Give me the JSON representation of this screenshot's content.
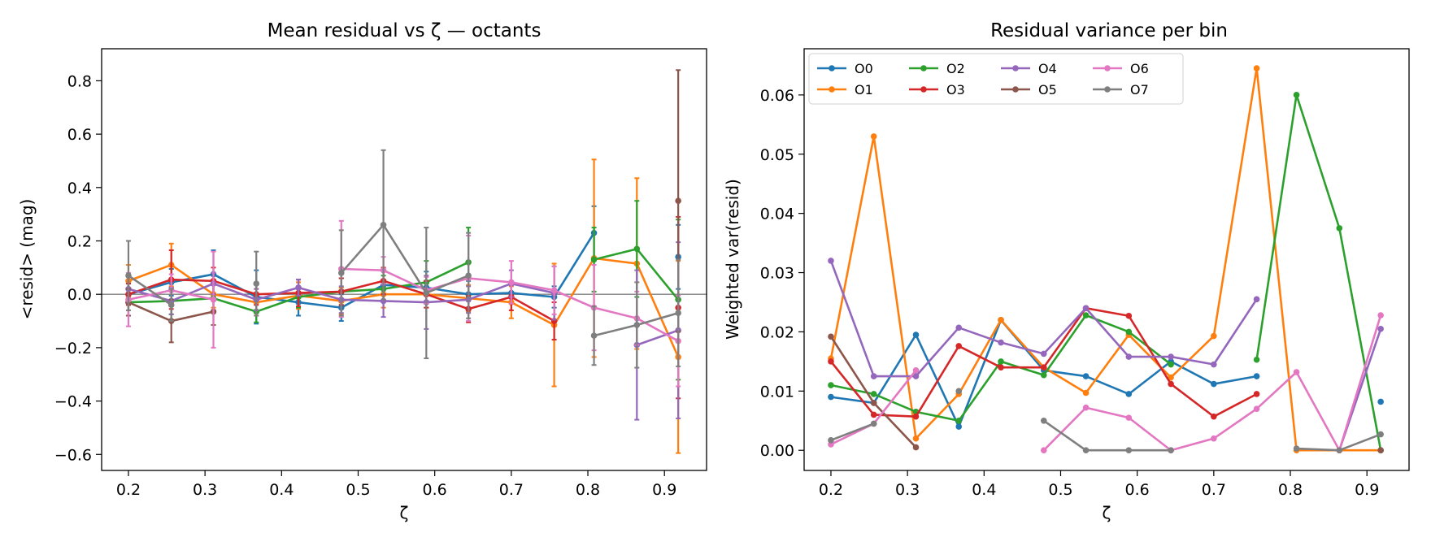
{
  "palette": [
    "#1f77b4",
    "#ff7f0e",
    "#2ca02c",
    "#d62728",
    "#9467bd",
    "#8c564b",
    "#e377c2",
    "#7f7f7f"
  ],
  "chart_data": [
    {
      "type": "line",
      "subtype": "errorbar",
      "title": "Mean residual vs ζ — octants",
      "xlabel": "ζ",
      "ylabel": "<resid> (mag)",
      "xlim": [
        0.165,
        0.955
      ],
      "ylim": [
        -0.66,
        0.92
      ],
      "xticks": [
        0.2,
        0.3,
        0.4,
        0.5,
        0.6,
        0.7,
        0.8,
        0.9
      ],
      "xtick_labels": [
        "0.2",
        "0.3",
        "0.4",
        "0.5",
        "0.6",
        "0.7",
        "0.8",
        "0.9"
      ],
      "yticks": [
        -0.6,
        -0.4,
        -0.2,
        0.0,
        0.2,
        0.4,
        0.6,
        0.8
      ],
      "ytick_labels": [
        "−0.6",
        "−0.4",
        "−0.2",
        "0.0",
        "0.2",
        "0.4",
        "0.6",
        "0.8"
      ],
      "hline": 0,
      "grid": false,
      "series": [
        {
          "x": [
            0.2,
            0.256,
            0.311,
            0.367,
            0.422,
            0.478,
            0.533,
            0.589,
            0.644,
            0.7,
            0.756,
            0.808,
            0.864,
            0.918
          ],
          "y": [
            0.0,
            0.045,
            0.075,
            -0.01,
            -0.03,
            -0.05,
            0.035,
            0.025,
            0.0,
            0.005,
            -0.01,
            0.23,
            null,
            0.14
          ],
          "err": [
            0.04,
            0.05,
            0.09,
            0.1,
            0.05,
            0.05,
            0.06,
            0.06,
            0.05,
            0.04,
            0.04,
            0.1,
            null,
            0.12
          ]
        },
        {
          "x": [
            0.2,
            0.256,
            0.311,
            0.367,
            0.422,
            0.478,
            0.533,
            0.589,
            0.644,
            0.7,
            0.756,
            0.808,
            0.864,
            0.918
          ],
          "y": [
            0.05,
            0.11,
            0.0,
            -0.03,
            -0.005,
            -0.025,
            0.0,
            0.0,
            -0.015,
            -0.03,
            -0.115,
            0.135,
            0.115,
            -0.235
          ],
          "err": [
            0.06,
            0.08,
            0.05,
            0.05,
            0.05,
            0.05,
            0.05,
            0.05,
            0.05,
            0.06,
            0.23,
            0.37,
            0.32,
            0.36
          ]
        },
        {
          "x": [
            0.2,
            0.256,
            0.311,
            0.367,
            0.422,
            0.478,
            0.533,
            0.589,
            0.644,
            0.7,
            0.756,
            0.808,
            0.864,
            0.918
          ],
          "y": [
            -0.03,
            -0.025,
            -0.015,
            -0.065,
            -0.01,
            0.01,
            0.02,
            0.045,
            0.12,
            null,
            null,
            0.13,
            0.17,
            -0.02
          ],
          "err": [
            0.05,
            0.05,
            0.05,
            0.04,
            0.04,
            0.05,
            0.05,
            0.08,
            0.13,
            null,
            null,
            0.12,
            0.18,
            0.3
          ]
        },
        {
          "x": [
            0.2,
            0.256,
            0.311,
            0.367,
            0.422,
            0.478,
            0.533,
            0.589,
            0.644,
            0.7,
            0.756,
            0.808,
            0.864,
            0.918
          ],
          "y": [
            0.0,
            0.055,
            0.05,
            0.0,
            0.005,
            0.01,
            0.05,
            0.0,
            -0.055,
            -0.01,
            -0.1,
            null,
            null,
            -0.05
          ],
          "err": [
            0.04,
            0.11,
            0.05,
            0.04,
            0.05,
            0.05,
            0.05,
            0.05,
            0.05,
            0.05,
            0.07,
            null,
            null,
            0.34
          ]
        },
        {
          "x": [
            0.2,
            0.256,
            0.311,
            0.367,
            0.422,
            0.478,
            0.533,
            0.589,
            0.644,
            0.7,
            0.756,
            0.808,
            0.864,
            0.918
          ],
          "y": [
            0.02,
            -0.025,
            0.04,
            -0.02,
            0.025,
            -0.02,
            -0.025,
            -0.03,
            -0.02,
            0.04,
            0.005,
            null,
            -0.19,
            -0.135
          ],
          "err": [
            0.05,
            0.05,
            0.04,
            0.04,
            0.03,
            0.05,
            0.06,
            0.1,
            0.05,
            0.05,
            0.1,
            null,
            0.28,
            0.33
          ]
        },
        {
          "x": [
            0.2,
            0.256,
            0.311,
            0.367,
            0.422,
            0.478,
            0.533,
            0.589,
            0.644,
            0.7,
            0.756,
            0.808,
            0.864,
            0.918
          ],
          "y": [
            -0.03,
            -0.1,
            -0.065,
            null,
            null,
            null,
            null,
            null,
            null,
            null,
            null,
            null,
            null,
            0.35
          ],
          "err": [
            0.05,
            0.08,
            0.05,
            null,
            null,
            null,
            null,
            null,
            null,
            null,
            null,
            null,
            null,
            0.49
          ]
        },
        {
          "x": [
            0.2,
            0.256,
            0.311,
            0.367,
            0.422,
            0.478,
            0.533,
            0.589,
            0.644,
            0.7,
            0.756,
            0.808,
            0.864,
            0.918
          ],
          "y": [
            -0.02,
            0.015,
            -0.02,
            null,
            null,
            0.095,
            0.09,
            0.015,
            0.06,
            0.045,
            0.015,
            -0.05,
            -0.09,
            -0.175
          ],
          "err": [
            0.1,
            0.06,
            0.18,
            null,
            null,
            0.18,
            0.05,
            0.05,
            0.16,
            0.08,
            0.09,
            0.16,
            0.1,
            0.17
          ]
        },
        {
          "x": [
            0.2,
            0.256,
            0.311,
            0.367,
            0.422,
            0.478,
            0.533,
            0.589,
            0.644,
            0.7,
            0.756,
            0.808,
            0.864,
            0.918
          ],
          "y": [
            0.07,
            -0.04,
            null,
            0.04,
            null,
            0.08,
            0.26,
            0.005,
            0.07,
            null,
            null,
            -0.155,
            -0.115,
            -0.07
          ],
          "err": [
            0.13,
            0.06,
            null,
            0.12,
            null,
            0.16,
            0.28,
            0.245,
            0.16,
            null,
            null,
            0.11,
            0.16,
            0.2
          ]
        }
      ]
    },
    {
      "type": "line",
      "title": "Residual variance per bin",
      "xlabel": "ζ",
      "ylabel": "Weighted var(resid)",
      "xlim": [
        0.165,
        0.955
      ],
      "ylim": [
        -0.0034,
        0.0678
      ],
      "xticks": [
        0.2,
        0.3,
        0.4,
        0.5,
        0.6,
        0.7,
        0.8,
        0.9
      ],
      "xtick_labels": [
        "0.2",
        "0.3",
        "0.4",
        "0.5",
        "0.6",
        "0.7",
        "0.8",
        "0.9"
      ],
      "yticks": [
        0.0,
        0.01,
        0.02,
        0.03,
        0.04,
        0.05,
        0.06
      ],
      "ytick_labels": [
        "0.00",
        "0.01",
        "0.02",
        "0.03",
        "0.04",
        "0.05",
        "0.06"
      ],
      "grid": false,
      "legend": {
        "position": "upper-left",
        "columns": 4
      },
      "series": [
        {
          "name": "O0",
          "x": [
            0.2,
            0.256,
            0.311,
            0.367,
            0.422,
            0.478,
            0.533,
            0.589,
            0.644,
            0.7,
            0.756,
            0.808,
            0.864,
            0.918
          ],
          "y": [
            0.009,
            0.008,
            0.0195,
            0.004,
            0.022,
            0.0135,
            0.0125,
            0.0095,
            0.015,
            0.0112,
            0.0125,
            null,
            null,
            0.0082
          ]
        },
        {
          "name": "O1",
          "x": [
            0.2,
            0.256,
            0.311,
            0.367,
            0.422,
            0.478,
            0.533,
            0.589,
            0.644,
            0.7,
            0.756,
            0.808,
            0.864,
            0.918
          ],
          "y": [
            0.0155,
            0.053,
            0.002,
            0.0095,
            0.022,
            0.014,
            0.0097,
            0.0195,
            0.0123,
            0.0193,
            0.0645,
            0.0,
            0.0,
            0.0
          ]
        },
        {
          "name": "O2",
          "x": [
            0.2,
            0.256,
            0.311,
            0.367,
            0.422,
            0.478,
            0.533,
            0.589,
            0.644,
            0.7,
            0.756,
            0.808,
            0.864,
            0.918
          ],
          "y": [
            0.011,
            0.0095,
            0.0065,
            0.005,
            0.015,
            0.0127,
            0.0228,
            0.02,
            0.0145,
            null,
            0.0153,
            0.06,
            0.0375,
            0.0
          ]
        },
        {
          "name": "O3",
          "x": [
            0.2,
            0.256,
            0.311,
            0.367,
            0.422,
            0.478,
            0.533,
            0.589,
            0.644,
            0.7,
            0.756,
            0.808,
            0.864,
            0.918
          ],
          "y": [
            0.015,
            0.006,
            0.0057,
            0.0176,
            0.014,
            0.014,
            0.024,
            0.0227,
            0.0112,
            0.0057,
            0.0095,
            null,
            null,
            null
          ]
        },
        {
          "name": "O4",
          "x": [
            0.2,
            0.256,
            0.311,
            0.367,
            0.422,
            0.478,
            0.533,
            0.589,
            0.644,
            0.7,
            0.756,
            0.808,
            0.864,
            0.918
          ],
          "y": [
            0.032,
            0.0125,
            0.0125,
            0.0207,
            0.0182,
            0.0163,
            0.024,
            0.0158,
            0.0158,
            0.0145,
            0.0255,
            null,
            0.0,
            0.0205
          ]
        },
        {
          "name": "O5",
          "x": [
            0.2,
            0.256,
            0.311,
            0.367,
            0.422,
            0.478,
            0.533,
            0.589,
            0.644,
            0.7,
            0.756,
            0.808,
            0.864,
            0.918
          ],
          "y": [
            0.0192,
            0.008,
            0.0005,
            null,
            null,
            null,
            null,
            null,
            null,
            null,
            null,
            null,
            null,
            0.0
          ]
        },
        {
          "name": "O6",
          "x": [
            0.2,
            0.256,
            0.311,
            0.367,
            0.422,
            0.478,
            0.533,
            0.589,
            0.644,
            0.7,
            0.756,
            0.808,
            0.864,
            0.918
          ],
          "y": [
            0.001,
            0.0045,
            0.0135,
            null,
            null,
            0.0,
            0.0072,
            0.0055,
            0.0,
            0.002,
            0.007,
            0.0132,
            0.0,
            0.0228
          ]
        },
        {
          "name": "O7",
          "x": [
            0.2,
            0.256,
            0.311,
            0.367,
            0.422,
            0.478,
            0.533,
            0.589,
            0.644,
            0.7,
            0.756,
            0.808,
            0.864,
            0.918
          ],
          "y": [
            0.0017,
            0.0045,
            null,
            0.01,
            null,
            0.005,
            0.0,
            0.0,
            0.0,
            null,
            null,
            0.0003,
            0.0,
            0.0027
          ]
        }
      ]
    }
  ]
}
